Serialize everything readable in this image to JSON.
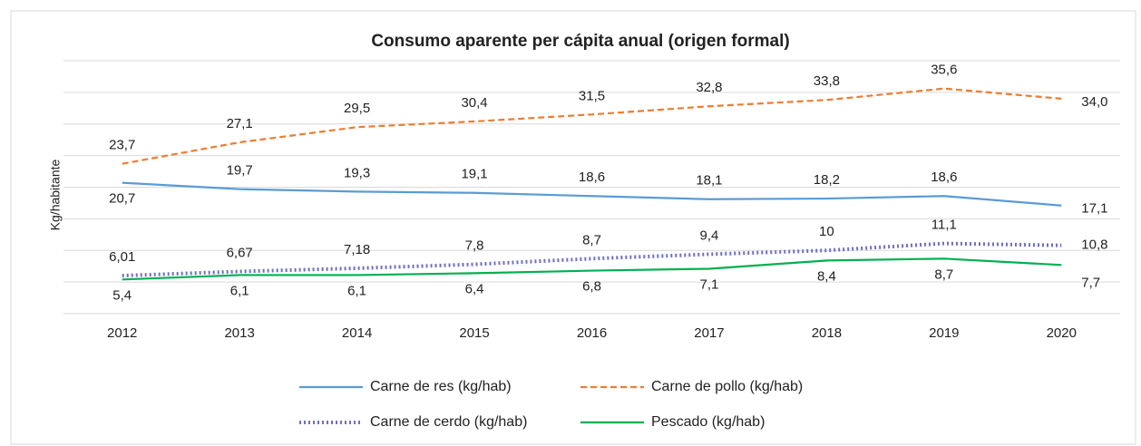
{
  "chart_data": {
    "type": "line",
    "title": "Consumo aparente per cápita anual (origen formal)",
    "y_label": "Kg/habitante",
    "categories": [
      "2012",
      "2013",
      "2014",
      "2015",
      "2016",
      "2017",
      "2018",
      "2019",
      "2020"
    ],
    "ylim": [
      0,
      40
    ],
    "yticks": [
      0,
      5,
      10,
      15,
      20,
      25,
      30,
      35,
      40
    ],
    "grid": true,
    "series": [
      {
        "name": "Carne de res (kg/hab)",
        "color": "#5b9bd5",
        "dash": "solid",
        "values": [
          20.7,
          19.7,
          19.3,
          19.1,
          18.6,
          18.1,
          18.2,
          18.6,
          17.1
        ],
        "value_labels": [
          "20,7",
          "19,7",
          "19,3",
          "19,1",
          "18,6",
          "18,1",
          "18,2",
          "18,6",
          "17,1"
        ]
      },
      {
        "name": "Carne de pollo  (kg/hab)",
        "color": "#ed7d31",
        "dash": "dashed",
        "values": [
          23.7,
          27.1,
          29.5,
          30.4,
          31.5,
          32.8,
          33.8,
          35.6,
          34.0
        ],
        "value_labels": [
          "23,7",
          "27,1",
          "29,5",
          "30,4",
          "31,5",
          "32,8",
          "33,8",
          "35,6",
          "34,0"
        ]
      },
      {
        "name": "Carne de cerdo (kg/hab)",
        "color": "#7070c0",
        "dash": "dotted",
        "values": [
          6.01,
          6.67,
          7.18,
          7.8,
          8.7,
          9.4,
          10,
          11.1,
          10.8
        ],
        "value_labels": [
          "6,01",
          "6,67",
          "7,18",
          "7,8",
          "8,7",
          "9,4",
          "10",
          "11,1",
          "10,8"
        ]
      },
      {
        "name": "Pescado (kg/hab)",
        "color": "#00b050",
        "dash": "solid",
        "values": [
          5.4,
          6.1,
          6.1,
          6.4,
          6.8,
          7.1,
          8.4,
          8.7,
          7.7
        ],
        "value_labels": [
          "5,4",
          "6,1",
          "6,1",
          "6,4",
          "6,8",
          "7,1",
          "8,4",
          "8,7",
          "7,7"
        ]
      }
    ]
  }
}
